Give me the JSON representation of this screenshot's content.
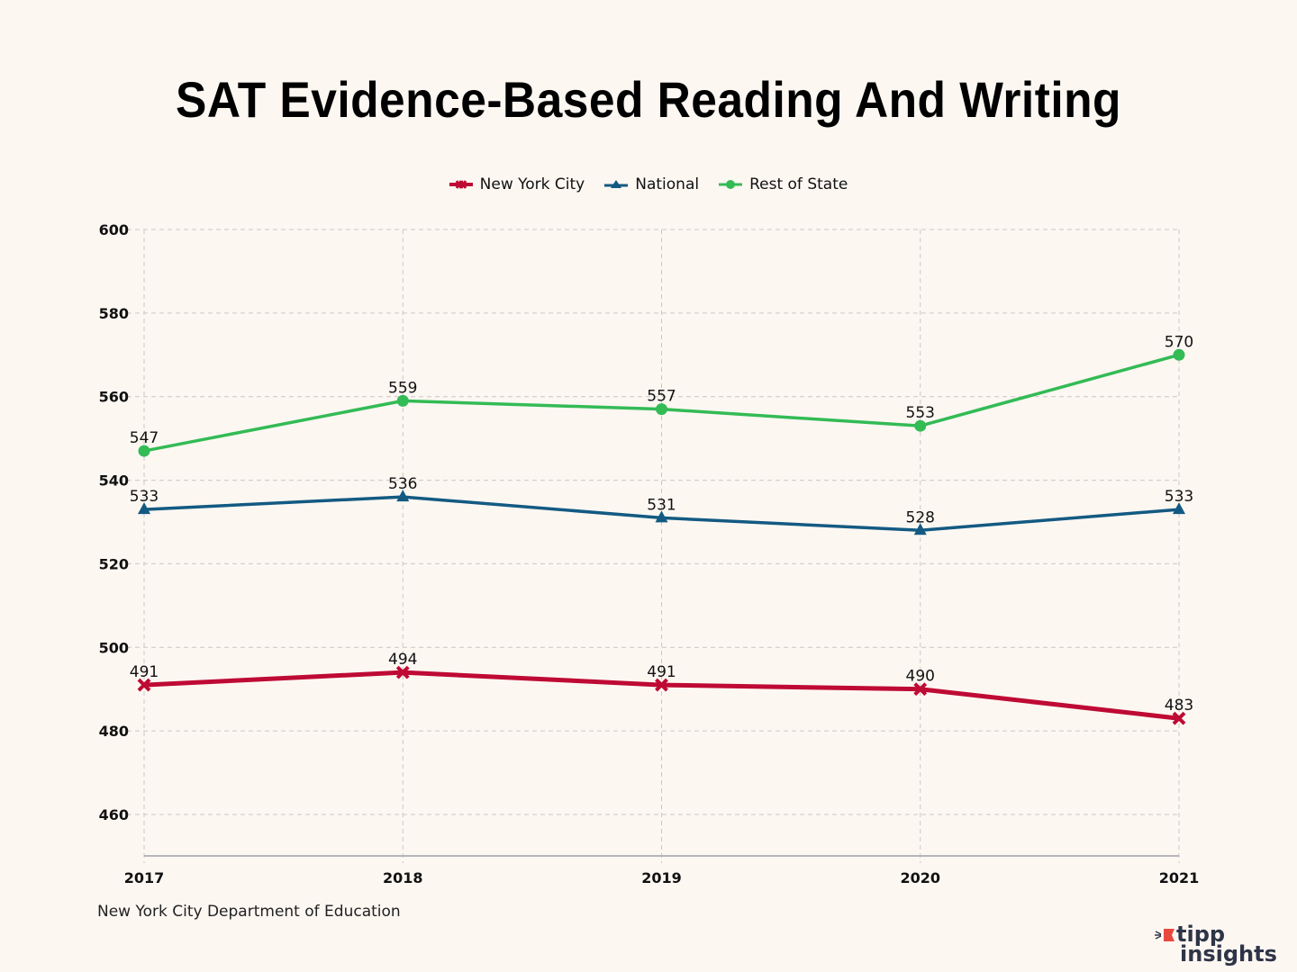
{
  "chart_data": {
    "type": "line",
    "title": "SAT Evidence-Based Reading And Writing",
    "xlabel": "",
    "ylabel": "",
    "categories": [
      "2017",
      "2018",
      "2019",
      "2020",
      "2021"
    ],
    "ylim": [
      450,
      600
    ],
    "yticks": [
      460,
      480,
      500,
      520,
      540,
      560,
      580,
      600
    ],
    "grid": true,
    "legend_position": "top-center",
    "series": [
      {
        "name": "New York City",
        "color": "#be0a34",
        "marker": "x",
        "values": [
          491,
          494,
          491,
          490,
          483
        ]
      },
      {
        "name": "National",
        "color": "#135a82",
        "marker": "triangle",
        "values": [
          533,
          536,
          531,
          528,
          533
        ]
      },
      {
        "name": "Rest of State",
        "color": "#33bb55",
        "marker": "circle",
        "values": [
          547,
          559,
          557,
          553,
          570
        ]
      }
    ],
    "source": "New York City Department of Education"
  },
  "branding": {
    "logo_line1": "tipp",
    "logo_line2": "insights",
    "logo_color": "#2f3548",
    "logo_accent": "#e8483d"
  }
}
